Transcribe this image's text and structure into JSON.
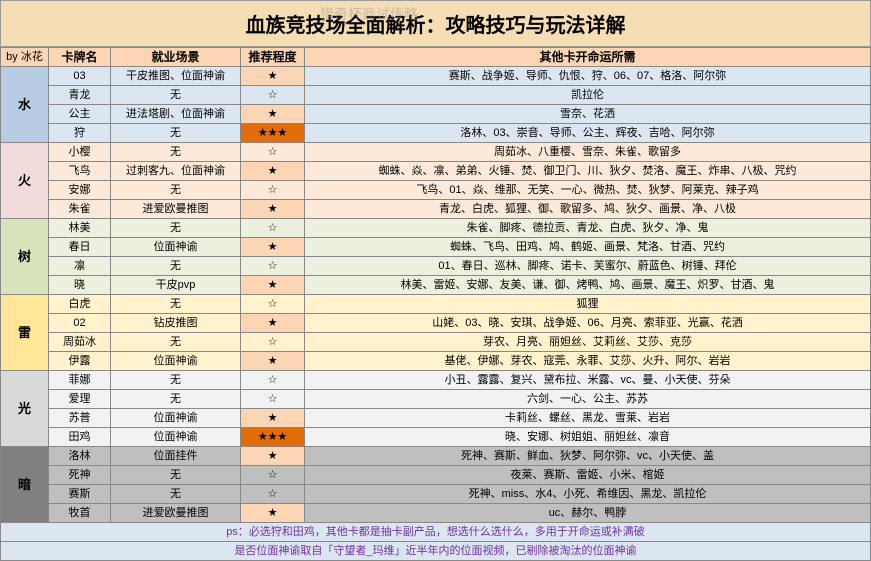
{
  "title": "血族竞技场全面解析：攻略技巧与玩法详解",
  "author": "by 冰花",
  "watermark": "猎奇杯商试传略",
  "headers": {
    "card": "卡牌名",
    "scene": "就业场景",
    "rec": "推荐程度",
    "other": "其他卡开命运所需"
  },
  "categories": [
    {
      "name": "水",
      "catClass": "water",
      "rowClass": "r-water",
      "rows": [
        {
          "card": "03",
          "scene": "干皮推图、位面神谕",
          "rec": "★",
          "recClass": "star",
          "other": "赛斯、战争姬、导师、仇恨、狩、06、07、格洛、阿尔弥"
        },
        {
          "card": "青龙",
          "scene": "无",
          "rec": "☆",
          "recClass": "",
          "other": "凯拉伦"
        },
        {
          "card": "公主",
          "scene": "进法塔剧、位面神谕",
          "rec": "★",
          "recClass": "star",
          "other": "雪奈、花洒"
        },
        {
          "card": "狩",
          "scene": "无",
          "rec": "★★★",
          "recClass": "star3",
          "other": "洛林、03、崇音、导师、公主、辉夜、吉哈、阿尔弥"
        }
      ]
    },
    {
      "name": "火",
      "catClass": "fire",
      "rowClass": "r-fire",
      "rows": [
        {
          "card": "小樱",
          "scene": "无",
          "rec": "☆",
          "recClass": "",
          "other": "周茹冰、八重樱、雪奈、朱雀、歌留多"
        },
        {
          "card": "飞鸟",
          "scene": "过刺客九、位面神谕",
          "rec": "★",
          "recClass": "star",
          "other": "蜘蛛、焱、凛、弟弟、火锤、焚、御卫门、川、狄夕、焚洛、魔王、炸串、八极、咒约"
        },
        {
          "card": "安娜",
          "scene": "无",
          "rec": "☆",
          "recClass": "",
          "other": "飞鸟、01、焱、维那、无笑、一心、微热、焚、狄梦、阿莱克、辣子鸡"
        },
        {
          "card": "朱雀",
          "scene": "进爱欧曼推图",
          "rec": "★",
          "recClass": "star",
          "other": "青龙、白虎、狐狸、御、歌留多、鸠、狄夕、画景、净、八极"
        }
      ]
    },
    {
      "name": "树",
      "catClass": "tree",
      "rowClass": "r-tree",
      "rows": [
        {
          "card": "林美",
          "scene": "无",
          "rec": "☆",
          "recClass": "",
          "other": "朱雀、脚疼、德拉贡、青龙、白虎、狄夕、净、鬼"
        },
        {
          "card": "春日",
          "scene": "位面神谕",
          "rec": "★",
          "recClass": "star",
          "other": "蜘蛛、飞鸟、田鸡、鸠、鹤姬、画景、梵洛、甘酒、咒约"
        },
        {
          "card": "凛",
          "scene": "无",
          "rec": "☆",
          "recClass": "",
          "other": "01、春日、巡林、脚疼、诺卡、芙蜜尔、蔚蓝色、树锤、拜伦"
        },
        {
          "card": "晓",
          "scene": "干皮pvp",
          "rec": "★",
          "recClass": "star",
          "other": "林美、雷姬、安娜、友美、谦、御、烤鸭、鸠、画景、魔王、炽罗、甘酒、鬼"
        }
      ]
    },
    {
      "name": "雷",
      "catClass": "thunder",
      "rowClass": "r-thunder",
      "rows": [
        {
          "card": "白虎",
          "scene": "无",
          "rec": "☆",
          "recClass": "",
          "other": "狐狸"
        },
        {
          "card": "02",
          "scene": "钻皮推图",
          "rec": "★",
          "recClass": "star",
          "other": "山姥、03、晓、安琪、战争姬、06、月亮、索菲亚、光赢、花洒"
        },
        {
          "card": "周茹冰",
          "scene": "无",
          "rec": "☆",
          "recClass": "",
          "other": "芽农、月亮、丽妲丝、艾莉丝、艾莎、克莎"
        },
        {
          "card": "伊露",
          "scene": "位面神谕",
          "rec": "★",
          "recClass": "star",
          "other": "基佬、伊娜、芽农、寇莞、永罪、艾莎、火升、阿尔、岩岩"
        }
      ]
    },
    {
      "name": "光",
      "catClass": "light",
      "rowClass": "r-light",
      "rows": [
        {
          "card": "菲娜",
          "scene": "无",
          "rec": "☆",
          "recClass": "",
          "other": "小丑、露露、复兴、黛布拉、米露、vc、曼、小天使、芬朵"
        },
        {
          "card": "爱理",
          "scene": "无",
          "rec": "☆",
          "recClass": "",
          "other": "六剑、一心、公主、苏苏"
        },
        {
          "card": "苏普",
          "scene": "位面神谕",
          "rec": "★",
          "recClass": "star",
          "other": "卡莉丝、螺丝、黑龙、雪莱、岩岩"
        },
        {
          "card": "田鸡",
          "scene": "位面神谕",
          "rec": "★★★",
          "recClass": "star3",
          "other": "晓、安娜、树姐姐、丽妲丝、凛音"
        }
      ]
    },
    {
      "name": "暗",
      "catClass": "dark",
      "rowClass": "r-dark",
      "rows": [
        {
          "card": "洛林",
          "scene": "位面挂件",
          "rec": "★",
          "recClass": "star",
          "other": "死神、赛斯、鲜血、狄梦、阿尔弥、vc、小天使、盖"
        },
        {
          "card": "死神",
          "scene": "无",
          "rec": "☆",
          "recClass": "",
          "other": "夜莱、赛斯、雷姬、小米、棺姬"
        },
        {
          "card": "赛斯",
          "scene": "无",
          "rec": "☆",
          "recClass": "",
          "other": "死神、miss、水4、小死、希维因、黑龙、凯拉伦"
        },
        {
          "card": "牧首",
          "scene": "进爱欧曼推图",
          "rec": "★",
          "recClass": "star",
          "other": "uc、赫尔、鸭脖"
        }
      ]
    }
  ],
  "note1": "ps：必选狩和田鸡，其他卡都是抽卡副产品，想选什么选什么，多用于开命运或补满破",
  "note2": "是否位面神谕取自「守望者_玛维」近半年内的位面视频，已剔除被淘汰的位面神谕"
}
